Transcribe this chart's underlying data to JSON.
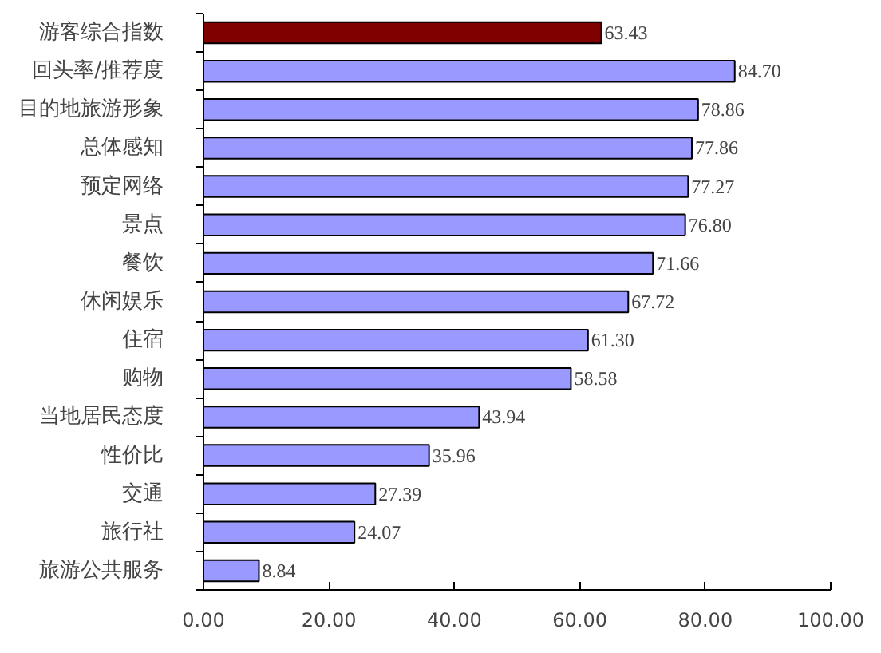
{
  "chart_data": {
    "type": "bar",
    "orientation": "horizontal",
    "categories": [
      "游客综合指数",
      "回头率/推荐度",
      "目的地旅游形象",
      "总体感知",
      "预定网络",
      "景点",
      "餐饮",
      "休闲娱乐",
      "住宿",
      "购物",
      "当地居民态度",
      "性价比",
      "交通",
      "旅行社",
      "旅游公共服务"
    ],
    "values": [
      63.43,
      84.7,
      78.86,
      77.86,
      77.27,
      76.8,
      71.66,
      67.72,
      61.3,
      58.58,
      43.94,
      35.96,
      27.39,
      24.07,
      8.84
    ],
    "colors": [
      "#800000",
      "#9999ff",
      "#9999ff",
      "#9999ff",
      "#9999ff",
      "#9999ff",
      "#9999ff",
      "#9999ff",
      "#9999ff",
      "#9999ff",
      "#9999ff",
      "#9999ff",
      "#9999ff",
      "#9999ff",
      "#9999ff"
    ],
    "value_labels": [
      "63.43",
      "84.70",
      "78.86",
      "77.86",
      "77.27",
      "76.80",
      "71.66",
      "67.72",
      "61.30",
      "58.58",
      "43.94",
      "35.96",
      "27.39",
      "24.07",
      "8.84"
    ],
    "xlim": [
      0,
      100
    ],
    "xticks": [
      {
        "value": 0,
        "label": "0.00"
      },
      {
        "value": 20,
        "label": "20.00"
      },
      {
        "value": 40,
        "label": "40.00"
      },
      {
        "value": 60,
        "label": "60.00"
      },
      {
        "value": 80,
        "label": "80.00"
      },
      {
        "value": 100,
        "label": "100.00"
      }
    ],
    "grid": false
  }
}
